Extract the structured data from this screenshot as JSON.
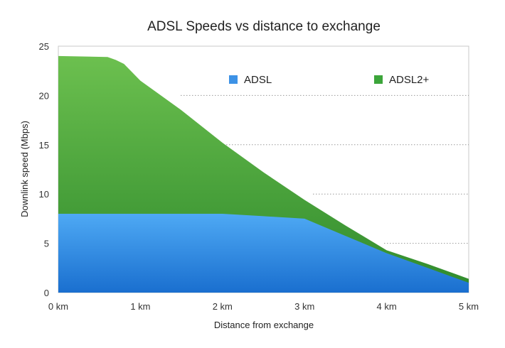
{
  "chart_data": {
    "type": "area",
    "title": "ADSL Speeds vs distance to exchange",
    "xlabel": "Distance from exchange",
    "ylabel": "Downlink speed (Mbps)",
    "xlim": [
      0,
      5
    ],
    "ylim": [
      0,
      25
    ],
    "x_ticks": [
      0,
      1,
      2,
      3,
      4,
      5
    ],
    "x_tick_labels": [
      "0 km",
      "1 km",
      "2 km",
      "3 km",
      "4 km",
      "5 km"
    ],
    "y_ticks": [
      0,
      5,
      10,
      15,
      20,
      25
    ],
    "y_tick_labels": [
      "0",
      "5",
      "10",
      "15",
      "20",
      "25"
    ],
    "legend_position": "top-right",
    "series": [
      {
        "name": "ADSL",
        "color": "#3d9be9",
        "x": [
          0,
          0.5,
          1,
          1.5,
          2,
          2.5,
          3,
          3.5,
          4,
          4.5,
          5
        ],
        "values": [
          8,
          8,
          8,
          8,
          8,
          7.75,
          7.5,
          5.75,
          4,
          2.5,
          1
        ]
      },
      {
        "name": "ADSL2+",
        "color": "#4aa83c",
        "x": [
          0,
          0.6,
          0.7,
          0.8,
          1,
          1.5,
          2,
          2.5,
          3,
          3.5,
          4,
          4.5,
          5
        ],
        "values": [
          24,
          23.9,
          23.6,
          23.2,
          21.5,
          18.5,
          15.2,
          12.2,
          9.4,
          6.8,
          4.3,
          2.9,
          1.4
        ]
      }
    ]
  }
}
